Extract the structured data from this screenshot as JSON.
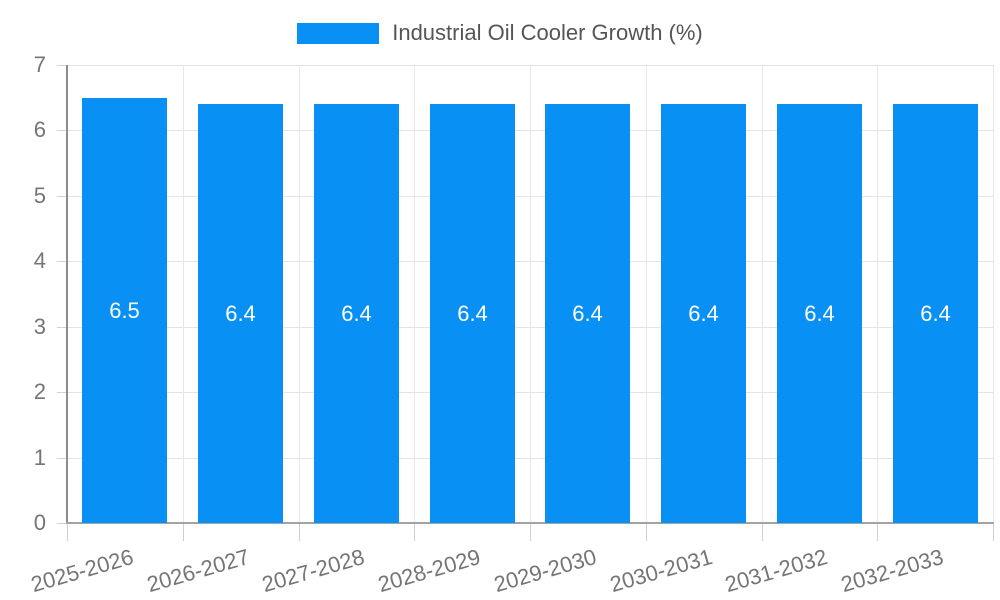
{
  "legend": {
    "label": "Industrial Oil Cooler Growth (%)"
  },
  "chart_data": {
    "type": "bar",
    "title": "Industrial Oil Cooler Growth (%)",
    "categories": [
      "2025-2026",
      "2026-2027",
      "2027-2028",
      "2028-2029",
      "2029-2030",
      "2030-2031",
      "2031-2032",
      "2032-2033"
    ],
    "values": [
      6.5,
      6.4,
      6.4,
      6.4,
      6.4,
      6.4,
      6.4,
      6.4
    ],
    "value_labels": [
      "6.5",
      "6.4",
      "6.4",
      "6.4",
      "6.4",
      "6.4",
      "6.4",
      "6.4"
    ],
    "xlabel": "",
    "ylabel": "",
    "ylim": [
      0,
      7
    ],
    "yticks": [
      0,
      1,
      2,
      3,
      4,
      5,
      6,
      7
    ],
    "grid": true,
    "legend_position": "top",
    "x_label_rotation_deg": -16,
    "colors": {
      "bar": "#0890f5",
      "value_label": "#ffffff",
      "axis_label": "#757575",
      "legend_text": "#555555",
      "gridline": "#e4e4e4",
      "axis_line": "#a3a3a3"
    }
  }
}
